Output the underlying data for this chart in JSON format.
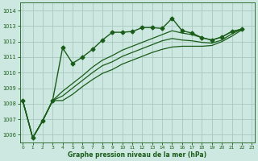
{
  "title": "Graphe pression niveau de la mer (hPa)",
  "background_color": "#cde8e0",
  "grid_color": "#a8c8c0",
  "line_color": "#1a5c1a",
  "x_min": 0,
  "x_max": 23,
  "y_min": 1005.5,
  "y_max": 1014.5,
  "y_ticks": [
    1006,
    1007,
    1008,
    1009,
    1010,
    1011,
    1012,
    1013,
    1014
  ],
  "x_ticks": [
    0,
    1,
    2,
    3,
    4,
    5,
    6,
    7,
    8,
    9,
    10,
    11,
    12,
    13,
    14,
    15,
    16,
    17,
    18,
    19,
    20,
    21,
    22,
    23
  ],
  "series_marker": [
    1008.2,
    1005.8,
    1006.9,
    1008.2,
    1011.6,
    1010.6,
    1011.0,
    1011.5,
    1012.1,
    1012.6,
    1012.6,
    1012.65,
    1012.9,
    1012.9,
    1012.85,
    1013.5,
    1012.7,
    1012.55,
    1012.25,
    1012.1,
    1012.3,
    1012.65,
    1012.8
  ],
  "series1": [
    1008.2,
    1005.8,
    1006.9,
    1008.2,
    1008.8,
    1009.3,
    1009.8,
    1010.35,
    1010.8,
    1011.1,
    1011.45,
    1011.7,
    1011.95,
    1012.2,
    1012.45,
    1012.7,
    1012.55,
    1012.45,
    1012.25,
    1012.1,
    1012.3,
    1012.65,
    1012.8
  ],
  "series2": [
    1008.2,
    1005.8,
    1006.9,
    1008.2,
    1008.5,
    1009.0,
    1009.5,
    1010.0,
    1010.45,
    1010.7,
    1011.05,
    1011.3,
    1011.55,
    1011.8,
    1012.05,
    1012.2,
    1012.1,
    1012.05,
    1011.95,
    1011.9,
    1012.1,
    1012.5,
    1012.8
  ],
  "series3": [
    1008.2,
    1005.8,
    1006.9,
    1008.2,
    1008.2,
    1008.6,
    1009.1,
    1009.55,
    1009.95,
    1010.2,
    1010.55,
    1010.8,
    1011.05,
    1011.3,
    1011.5,
    1011.65,
    1011.7,
    1011.7,
    1011.7,
    1011.75,
    1012.0,
    1012.35,
    1012.75
  ]
}
